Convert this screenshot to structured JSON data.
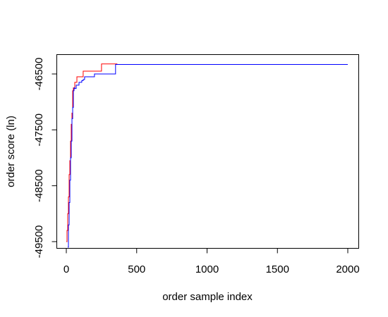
{
  "chart_data": {
    "type": "line",
    "title": "",
    "xlabel": "order sample index",
    "ylabel": "order score (ln)",
    "xlim": [
      0,
      2000
    ],
    "ylim": [
      -49500,
      -46300
    ],
    "xticks": [
      0,
      500,
      1000,
      1500,
      2000
    ],
    "yticks": [
      -49500,
      -48500,
      -47500,
      -46500
    ],
    "xtick_labels": [
      "0",
      "500",
      "1000",
      "1500",
      "2000"
    ],
    "ytick_labels": [
      "-49500",
      "-48500",
      "-47500",
      "-46500"
    ],
    "grid": false,
    "legend": "none",
    "series": [
      {
        "color": "#ff0000",
        "step": true,
        "x": [
          0,
          5,
          10,
          15,
          20,
          25,
          30,
          35,
          40,
          45,
          50,
          60,
          75,
          100,
          120,
          130,
          250,
          350,
          360,
          2000
        ],
        "y": [
          -49500,
          -49300,
          -49000,
          -48700,
          -48300,
          -48050,
          -47700,
          -47400,
          -47200,
          -46800,
          -46750,
          -46650,
          -46550,
          -46550,
          -46450,
          -46450,
          -46320,
          -46320,
          -46330,
          -46330
        ]
      },
      {
        "color": "#0000ff",
        "step": true,
        "x": [
          10,
          15,
          20,
          25,
          30,
          35,
          40,
          45,
          50,
          55,
          60,
          70,
          80,
          90,
          100,
          110,
          120,
          130,
          150,
          200,
          350,
          360,
          2000
        ],
        "y": [
          -49600,
          -49200,
          -48800,
          -48400,
          -48000,
          -47700,
          -47300,
          -47100,
          -46800,
          -46750,
          -46760,
          -46700,
          -46700,
          -46650,
          -46650,
          -46620,
          -46600,
          -46550,
          -46550,
          -46500,
          -46330,
          -46330,
          -46330
        ]
      }
    ]
  }
}
